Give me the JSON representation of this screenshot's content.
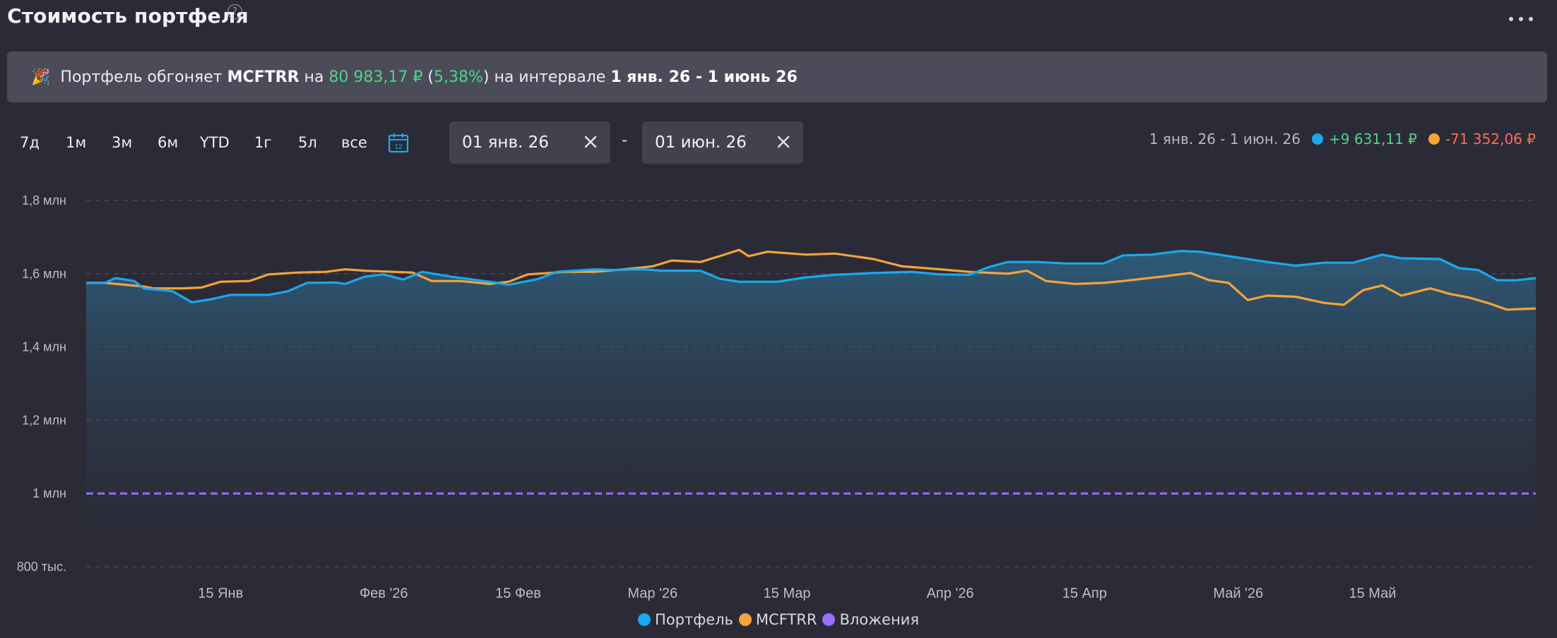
{
  "header": {
    "title": "Стоимость портфеля",
    "help_glyph": "?"
  },
  "banner": {
    "emoji": "🎉",
    "text1": "Портфель обгоняет",
    "index": "MCFTRR",
    "text2": "на",
    "amount": "80 983,17 ₽",
    "pct": "5,38%",
    "text3": "на интервале",
    "range": "1 янв. 26 - 1 июнь 26"
  },
  "periods": [
    "7д",
    "1м",
    "3м",
    "6м",
    "YTD",
    "1г",
    "5л",
    "все"
  ],
  "date_from": "01 янв. 26",
  "date_to": "01 июн. 26",
  "date_sep": "-",
  "stats": {
    "period": "1 янв. 26 - 1 июн. 26",
    "portfolio_delta": "+9 631,11 ₽",
    "index_delta": "-71 352,06 ₽"
  },
  "colors": {
    "portfolio": "#1aa8f0",
    "index": "#f5a33a",
    "investments": "#9b6cff"
  },
  "chart_data": {
    "type": "line",
    "y_ticks": [
      {
        "v": 1800000,
        "label": "1,8 млн"
      },
      {
        "v": 1600000,
        "label": "1,6 млн"
      },
      {
        "v": 1400000,
        "label": "1,4 млн"
      },
      {
        "v": 1200000,
        "label": "1,2 млн"
      },
      {
        "v": 1000000,
        "label": "1 млн"
      },
      {
        "v": 800000,
        "label": "800 тыс."
      }
    ],
    "ylim": [
      800000,
      1800000
    ],
    "x_range": [
      "2026-01-01",
      "2026-06-01"
    ],
    "x_ticks": [
      {
        "date": "2026-01-15",
        "label": "15 Янв"
      },
      {
        "date": "2026-02-01",
        "label": "Фев '26"
      },
      {
        "date": "2026-02-15",
        "label": "15 Фев"
      },
      {
        "date": "2026-03-01",
        "label": "Мар '26"
      },
      {
        "date": "2026-03-15",
        "label": "15 Мар"
      },
      {
        "date": "2026-04-01",
        "label": "Апр '26"
      },
      {
        "date": "2026-04-15",
        "label": "15 Апр"
      },
      {
        "date": "2026-05-01",
        "label": "Май '26"
      },
      {
        "date": "2026-05-15",
        "label": "15 Май"
      }
    ],
    "series": [
      {
        "name": "Портфель",
        "points": [
          [
            "2026-01-01",
            1575000
          ],
          [
            "2026-01-03",
            1575000
          ],
          [
            "2026-01-04",
            1588000
          ],
          [
            "2026-01-06",
            1580000
          ],
          [
            "2026-01-07",
            1560000
          ],
          [
            "2026-01-10",
            1552000
          ],
          [
            "2026-01-12",
            1522000
          ],
          [
            "2026-01-14",
            1530000
          ],
          [
            "2026-01-16",
            1542000
          ],
          [
            "2026-01-20",
            1542000
          ],
          [
            "2026-01-22",
            1552000
          ],
          [
            "2026-01-24",
            1575000
          ],
          [
            "2026-01-27",
            1576000
          ],
          [
            "2026-01-28",
            1572000
          ],
          [
            "2026-01-30",
            1592000
          ],
          [
            "2026-02-01",
            1598000
          ],
          [
            "2026-02-03",
            1584000
          ],
          [
            "2026-02-05",
            1605000
          ],
          [
            "2026-02-08",
            1592000
          ],
          [
            "2026-02-12",
            1578000
          ],
          [
            "2026-02-14",
            1570000
          ],
          [
            "2026-02-17",
            1585000
          ],
          [
            "2026-02-19",
            1605000
          ],
          [
            "2026-02-23",
            1612000
          ],
          [
            "2026-02-25",
            1610000
          ],
          [
            "2026-02-28",
            1612000
          ],
          [
            "2026-03-02",
            1608000
          ],
          [
            "2026-03-06",
            1608000
          ],
          [
            "2026-03-08",
            1586000
          ],
          [
            "2026-03-10",
            1578000
          ],
          [
            "2026-03-14",
            1578000
          ],
          [
            "2026-03-17",
            1590000
          ],
          [
            "2026-03-20",
            1597000
          ],
          [
            "2026-03-24",
            1602000
          ],
          [
            "2026-03-28",
            1605000
          ],
          [
            "2026-03-31",
            1598000
          ],
          [
            "2026-04-03",
            1597000
          ],
          [
            "2026-04-05",
            1618000
          ],
          [
            "2026-04-07",
            1632000
          ],
          [
            "2026-04-10",
            1632000
          ],
          [
            "2026-04-13",
            1628000
          ],
          [
            "2026-04-17",
            1628000
          ],
          [
            "2026-04-19",
            1650000
          ],
          [
            "2026-04-22",
            1652000
          ],
          [
            "2026-04-25",
            1662000
          ],
          [
            "2026-04-27",
            1660000
          ],
          [
            "2026-04-30",
            1648000
          ],
          [
            "2026-05-04",
            1632000
          ],
          [
            "2026-05-07",
            1622000
          ],
          [
            "2026-05-10",
            1630000
          ],
          [
            "2026-05-13",
            1630000
          ],
          [
            "2026-05-16",
            1652000
          ],
          [
            "2026-05-18",
            1642000
          ],
          [
            "2026-05-22",
            1640000
          ],
          [
            "2026-05-24",
            1615000
          ],
          [
            "2026-05-26",
            1610000
          ],
          [
            "2026-05-28",
            1582000
          ],
          [
            "2026-05-30",
            1582000
          ],
          [
            "2026-06-01",
            1588000
          ]
        ]
      },
      {
        "name": "MCFTRR",
        "points": [
          [
            "2026-01-01",
            1575000
          ],
          [
            "2026-01-03",
            1575000
          ],
          [
            "2026-01-05",
            1570000
          ],
          [
            "2026-01-07",
            1565000
          ],
          [
            "2026-01-08",
            1560000
          ],
          [
            "2026-01-11",
            1560000
          ],
          [
            "2026-01-13",
            1562000
          ],
          [
            "2026-01-15",
            1578000
          ],
          [
            "2026-01-18",
            1580000
          ],
          [
            "2026-01-20",
            1598000
          ],
          [
            "2026-01-23",
            1603000
          ],
          [
            "2026-01-26",
            1605000
          ],
          [
            "2026-01-28",
            1612000
          ],
          [
            "2026-01-30",
            1608000
          ],
          [
            "2026-02-02",
            1605000
          ],
          [
            "2026-02-04",
            1603000
          ],
          [
            "2026-02-06",
            1580000
          ],
          [
            "2026-02-09",
            1580000
          ],
          [
            "2026-02-12",
            1572000
          ],
          [
            "2026-02-14",
            1578000
          ],
          [
            "2026-02-16",
            1598000
          ],
          [
            "2026-02-20",
            1605000
          ],
          [
            "2026-02-23",
            1605000
          ],
          [
            "2026-02-26",
            1612000
          ],
          [
            "2026-03-01",
            1620000
          ],
          [
            "2026-03-03",
            1636000
          ],
          [
            "2026-03-06",
            1632000
          ],
          [
            "2026-03-08",
            1648000
          ],
          [
            "2026-03-10",
            1665000
          ],
          [
            "2026-03-11",
            1648000
          ],
          [
            "2026-03-13",
            1660000
          ],
          [
            "2026-03-17",
            1652000
          ],
          [
            "2026-03-20",
            1655000
          ],
          [
            "2026-03-24",
            1640000
          ],
          [
            "2026-03-27",
            1620000
          ],
          [
            "2026-03-31",
            1612000
          ],
          [
            "2026-04-03",
            1605000
          ],
          [
            "2026-04-07",
            1600000
          ],
          [
            "2026-04-09",
            1608000
          ],
          [
            "2026-04-11",
            1580000
          ],
          [
            "2026-04-14",
            1572000
          ],
          [
            "2026-04-17",
            1575000
          ],
          [
            "2026-04-19",
            1580000
          ],
          [
            "2026-04-23",
            1592000
          ],
          [
            "2026-04-26",
            1602000
          ],
          [
            "2026-04-28",
            1582000
          ],
          [
            "2026-04-30",
            1575000
          ],
          [
            "2026-05-02",
            1528000
          ],
          [
            "2026-05-04",
            1540000
          ],
          [
            "2026-05-07",
            1537000
          ],
          [
            "2026-05-10",
            1520000
          ],
          [
            "2026-05-12",
            1515000
          ],
          [
            "2026-05-14",
            1555000
          ],
          [
            "2026-05-16",
            1568000
          ],
          [
            "2026-05-18",
            1540000
          ],
          [
            "2026-05-21",
            1560000
          ],
          [
            "2026-05-23",
            1545000
          ],
          [
            "2026-05-25",
            1535000
          ],
          [
            "2026-05-27",
            1520000
          ],
          [
            "2026-05-29",
            1502000
          ],
          [
            "2026-06-01",
            1505000
          ]
        ]
      },
      {
        "name": "Вложения",
        "points": [
          [
            "2026-01-01",
            1000000
          ],
          [
            "2026-06-01",
            1000000
          ]
        ]
      }
    ],
    "grid": true,
    "legend_position": "bottom"
  }
}
